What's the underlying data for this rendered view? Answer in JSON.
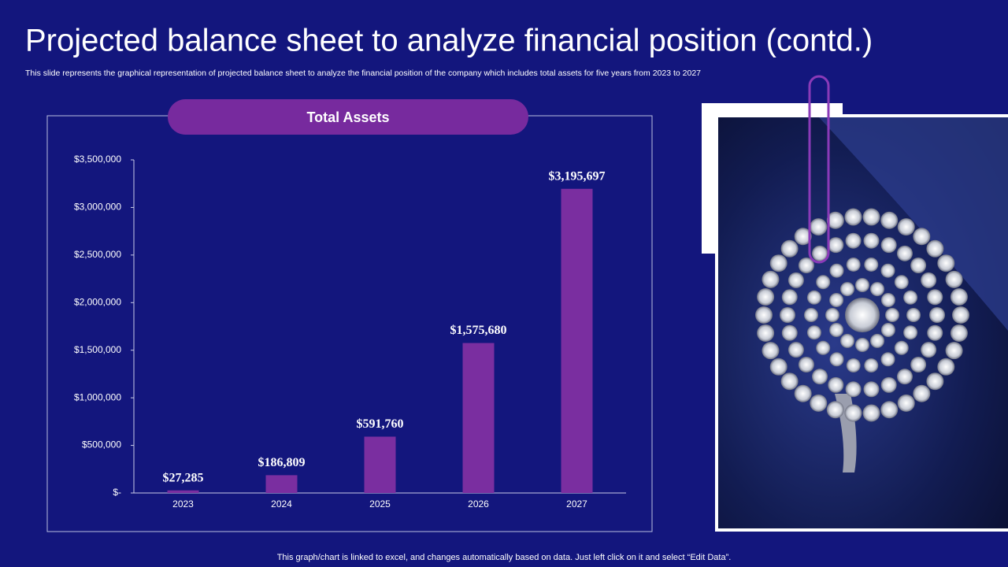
{
  "title": "Projected balance sheet to analyze financial position (contd.)",
  "subtitle": "This slide represents the graphical representation of projected balance sheet to analyze the financial position of the company which includes total assets for five years from 2023 to 2027",
  "footnote": "This graph/chart is linked to excel, and changes automatically based on data. Just left click on it and select “Edit Data”.",
  "chart_data": {
    "type": "bar",
    "title": "Total Assets",
    "categories": [
      "2023",
      "2024",
      "2025",
      "2026",
      "2027"
    ],
    "values": [
      27285,
      186809,
      591760,
      1575680,
      3195697
    ],
    "value_labels": [
      "$27,285",
      "$186,809",
      "$591,760",
      "$1,575,680",
      "$3,195,697"
    ],
    "color": "#7a2ea0",
    "ylim": [
      0,
      3500000
    ],
    "yticks": [
      {
        "value": 0,
        "label": "$-"
      },
      {
        "value": 500000,
        "label": "$500,000"
      },
      {
        "value": 1000000,
        "label": "$1,000,000"
      },
      {
        "value": 1500000,
        "label": "$1,500,000"
      },
      {
        "value": 2000000,
        "label": "$2,000,000"
      },
      {
        "value": 2500000,
        "label": "$2,500,000"
      },
      {
        "value": 3000000,
        "label": "$3,000,000"
      },
      {
        "value": 3500000,
        "label": "$3,500,000"
      }
    ],
    "grid": false
  }
}
